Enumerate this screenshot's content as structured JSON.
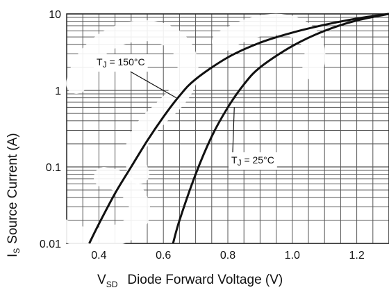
{
  "chart_data": {
    "type": "line",
    "x_scale": "linear",
    "y_scale": "log",
    "xlim": [
      0.3,
      1.3
    ],
    "ylim": [
      0.01,
      10
    ],
    "x_ticks": [
      0.4,
      0.6,
      0.8,
      1.0,
      1.2
    ],
    "x_tick_labels": [
      "0.4",
      "0.6",
      "0.8",
      "1.0",
      "1.2"
    ],
    "y_ticks": [
      0.01,
      0.1,
      1,
      10
    ],
    "y_tick_labels": [
      "0.01",
      "0.1",
      "1",
      "10"
    ],
    "xlabel": {
      "prefix": "V",
      "subscript": "SD",
      "text": "Diode Forward Voltage (V)"
    },
    "ylabel": {
      "prefix": "I",
      "subscript": "S",
      "text": "Source Current (A)"
    },
    "grid": true,
    "series": [
      {
        "name": "T_J = 150°C",
        "x": [
          0.37,
          0.4,
          0.45,
          0.5,
          0.55,
          0.6,
          0.65,
          0.7,
          0.8,
          0.9,
          1.0,
          1.1,
          1.2,
          1.3
        ],
        "y": [
          0.01,
          0.018,
          0.045,
          0.1,
          0.22,
          0.45,
          0.85,
          1.4,
          2.7,
          4.2,
          5.7,
          7.2,
          8.7,
          10
        ]
      },
      {
        "name": "T_J = 25°C",
        "x": [
          0.63,
          0.65,
          0.7,
          0.75,
          0.8,
          0.85,
          0.9,
          1.0,
          1.1,
          1.2,
          1.3
        ],
        "y": [
          0.01,
          0.02,
          0.08,
          0.25,
          0.6,
          1.2,
          2.0,
          3.8,
          6.0,
          8.2,
          10
        ]
      }
    ],
    "annotations": [
      {
        "label": {
          "main": "T",
          "sub": "J",
          "rest": " = 150°C"
        },
        "series": 0,
        "point": [
          0.64,
          0.8
        ]
      },
      {
        "label": {
          "main": "T",
          "sub": "J",
          "rest": " = 25°C"
        },
        "series": 1,
        "point": [
          0.82,
          0.6
        ]
      }
    ]
  }
}
